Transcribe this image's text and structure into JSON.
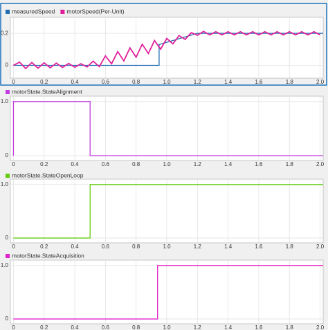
{
  "chart_data": [
    {
      "type": "line",
      "series": [
        {
          "name": "measuredSpeed",
          "color": "#1f6fb2",
          "x": [
            0,
            0.95,
            0.95,
            1.2,
            2.02
          ],
          "values": [
            0,
            0,
            0.13,
            0.2,
            0.2
          ]
        },
        {
          "name": "motorSpeed(Per-Unit)",
          "color": "#e0209a",
          "x": [
            0,
            0.04,
            0.08,
            0.12,
            0.16,
            0.2,
            0.24,
            0.28,
            0.32,
            0.36,
            0.4,
            0.44,
            0.48,
            0.52,
            0.56,
            0.6,
            0.64,
            0.68,
            0.72,
            0.76,
            0.8,
            0.84,
            0.88,
            0.92,
            0.96,
            1.0,
            1.04,
            1.08,
            1.12,
            1.16,
            1.2,
            1.24,
            1.28,
            1.32,
            1.36,
            1.4,
            1.44,
            1.48,
            1.52,
            1.56,
            1.6,
            1.64,
            1.68,
            1.72,
            1.76,
            1.8,
            1.84,
            1.88,
            1.92,
            1.96,
            2.0
          ],
          "values": [
            0,
            0.02,
            -0.02,
            0.018,
            -0.018,
            0.016,
            -0.015,
            0.014,
            -0.013,
            0.012,
            -0.012,
            0.01,
            -0.01,
            0.026,
            -0.008,
            0.059,
            0.01,
            0.086,
            0.028,
            0.109,
            0.051,
            0.132,
            0.074,
            0.155,
            0.101,
            0.168,
            0.134,
            0.186,
            0.162,
            0.204,
            0.188,
            0.212,
            0.19,
            0.21,
            0.19,
            0.21,
            0.19,
            0.21,
            0.19,
            0.21,
            0.19,
            0.21,
            0.19,
            0.21,
            0.19,
            0.21,
            0.19,
            0.21,
            0.19,
            0.21,
            0.19
          ]
        }
      ],
      "xlim": [
        -0.02,
        2.02
      ],
      "ylim": [
        -0.08,
        0.3
      ],
      "xticks": [
        0,
        0.2,
        0.4,
        0.6,
        0.8,
        {
          "value": 1,
          "label": "1.0"
        },
        1.2,
        1.4,
        1.6,
        1.8,
        {
          "value": 2,
          "label": "2.0"
        }
      ],
      "yticks": [
        0,
        0.2
      ],
      "grid": true
    },
    {
      "type": "line",
      "series": [
        {
          "name": "motorState.StateAlignment",
          "color": "#c23de0",
          "x": [
            0,
            0,
            0.5,
            0.5,
            2.02
          ],
          "values": [
            0,
            1,
            1,
            0,
            0
          ]
        }
      ],
      "xlim": [
        -0.02,
        2.02
      ],
      "ylim": [
        -0.09,
        1.1
      ],
      "xticks": [
        0,
        0.2,
        0.4,
        0.6,
        0.8,
        {
          "value": 1,
          "label": "1.0"
        },
        1.2,
        1.4,
        1.6,
        1.8,
        {
          "value": 2,
          "label": "2.0"
        }
      ],
      "yticks": [
        0,
        {
          "value": 1,
          "label": "1.0"
        }
      ],
      "grid": true
    },
    {
      "type": "line",
      "series": [
        {
          "name": "motorState.StateOpenLoop",
          "color": "#66cc11",
          "x": [
            0,
            0.5,
            0.5,
            2.02
          ],
          "values": [
            0,
            0,
            1,
            1
          ]
        }
      ],
      "xlim": [
        -0.02,
        2.02
      ],
      "ylim": [
        -0.09,
        1.1
      ],
      "xticks": [
        0,
        0.2,
        0.4,
        0.6,
        0.8,
        {
          "value": 1,
          "label": "1.0"
        },
        1.2,
        1.4,
        1.6,
        1.8,
        {
          "value": 2,
          "label": "2.0"
        }
      ],
      "yticks": [
        0,
        {
          "value": 1,
          "label": "1.0"
        }
      ],
      "grid": true
    },
    {
      "type": "line",
      "series": [
        {
          "name": "motorState.StateAcquisition",
          "color": "#e020c8",
          "x": [
            0,
            0.94,
            0.94,
            2.02
          ],
          "values": [
            0,
            0,
            1,
            1
          ]
        }
      ],
      "xlim": [
        -0.02,
        2.02
      ],
      "ylim": [
        -0.09,
        1.1
      ],
      "xticks": [
        0,
        0.2,
        0.4,
        0.6,
        0.8,
        {
          "value": 1,
          "label": "1.0"
        },
        1.2,
        1.4,
        1.6,
        1.8,
        {
          "value": 2,
          "label": "2.0"
        }
      ],
      "yticks": [
        0,
        {
          "value": 1,
          "label": "1.0"
        }
      ],
      "grid": true
    }
  ]
}
